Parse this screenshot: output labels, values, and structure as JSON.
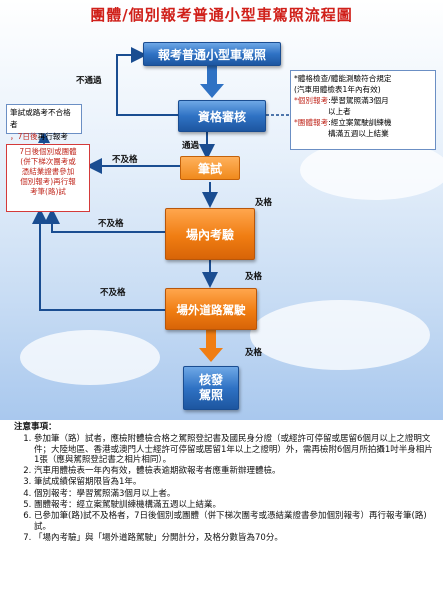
{
  "title": "團體/個別報考普通小型車駕照流程圖",
  "steps": {
    "apply": "報考普通小型車駕照",
    "qualify": "資格審核",
    "written": "筆試",
    "field": "場內考驗",
    "road": "場外道路駕駛",
    "issue_line1": "核發",
    "issue_line2": "駕照"
  },
  "labels": {
    "fail_qualify": "不通過",
    "pass_qualify": "通過",
    "fail_written": "不及格",
    "pass_written": "及格",
    "fail_field": "不及格",
    "pass_field": "及格",
    "fail_road": "不及格",
    "pass_road": "及格"
  },
  "requirements_box": {
    "line1": "*體格檢查/體能測驗符合規定",
    "line2": "(汽車用體檢表1年內有效)",
    "line3_prefix": "*個別報考",
    "line3_rest": ":學習駕照滿3個月",
    "line4": "以上者",
    "line5_prefix": "*團體報考",
    "line5_rest": ":經立案駕駛訓練機",
    "line6": "構滿五週以上結業"
  },
  "left_note": {
    "line1": "筆試或路考不合格者",
    "line2_red": "，7日後",
    "line2_rest": "再行報考"
  },
  "red_note": {
    "line1": "7日後個別或團體",
    "line2": "(併下梯次團考或",
    "line3": "憑結業證書參加",
    "line4": "個別報考)再行報",
    "line5": "考筆(路)試"
  },
  "notes": {
    "heading": "注意事項：",
    "items": [
      "參加筆（路）試者，應檢附體檢合格之駕照登記書及國民身分證（或經許可停留或居留6個月以上之證明文件；大陸地區、香港或澳門人士經許可停留或居留1年以上之證明）外，需再檢附6個月所拍攝1吋半身相片1張（應與駕照登記書之相片相同）。",
      "汽車用體檢表一年內有效，體檢表逾期欲報考者應重新辦理體檢。",
      "筆試成績保留期限皆為1年。",
      "個別報考：學習駕照滿3個月以上者。",
      "團體報考：經立案駕駛訓練機構滿五週以上結業。",
      "已參加筆(路)試不及格者，7日後個別或團體（併下梯次團考或憑結業證書參加個別報考）再行報考筆(路)試。",
      "「場內考驗」與「場外道路駕駛」分開計分，及格分數皆為70分。"
    ]
  },
  "colors": {
    "title_red": "#d0201a",
    "box_blue": "#2f72c4",
    "box_orange": "#f07d12",
    "note_red": "#c0281e"
  }
}
